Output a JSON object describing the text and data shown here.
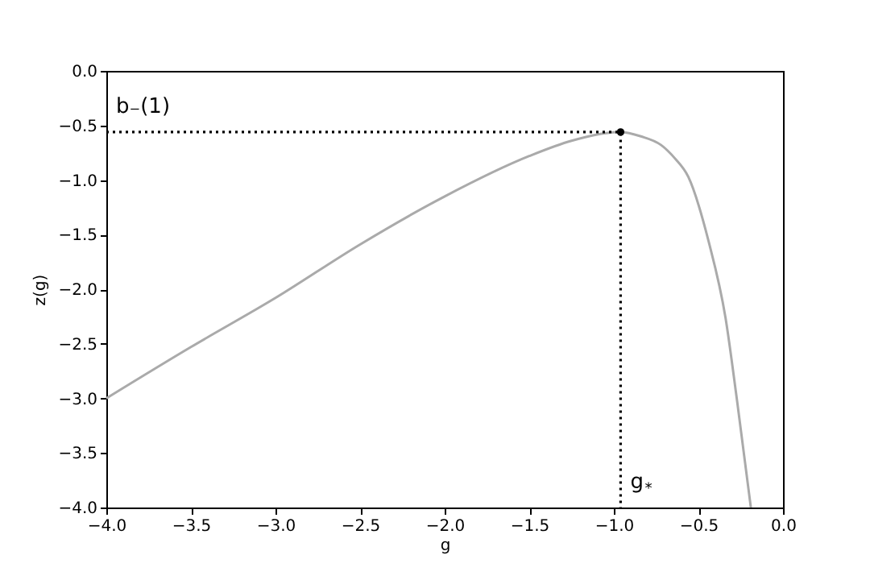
{
  "chart_data": {
    "type": "line",
    "xlabel": "g",
    "ylabel": "z(g)",
    "xlim": [
      -4,
      0
    ],
    "ylim": [
      -4,
      0
    ],
    "xticks": [
      {
        "value": -4,
        "label": "−4.0"
      },
      {
        "value": -3.5,
        "label": "−3.5"
      },
      {
        "value": -3,
        "label": "−3.0"
      },
      {
        "value": -2.5,
        "label": "−2.5"
      },
      {
        "value": -2,
        "label": "−2.0"
      },
      {
        "value": -1.5,
        "label": "−1.5"
      },
      {
        "value": -1,
        "label": "−1.0"
      },
      {
        "value": -0.5,
        "label": "−0.5"
      },
      {
        "value": 0,
        "label": "0.0"
      }
    ],
    "yticks": [
      {
        "value": 0,
        "label": "0.0"
      },
      {
        "value": -0.5,
        "label": "−0.5"
      },
      {
        "value": -1,
        "label": "−1.0"
      },
      {
        "value": -1.5,
        "label": "−1.5"
      },
      {
        "value": -2,
        "label": "−2.0"
      },
      {
        "value": -2.5,
        "label": "−2.5"
      },
      {
        "value": -3,
        "label": "−3.0"
      },
      {
        "value": -3.5,
        "label": "−3.5"
      },
      {
        "value": -4,
        "label": "−4.0"
      }
    ],
    "grid": false,
    "series": [
      {
        "type": "line",
        "color": "#aaaaaa",
        "line_style": "solid",
        "x": [
          -4,
          -3.5,
          -3,
          -2.5,
          -2,
          -1.5,
          -1.25,
          -0.96,
          -0.84,
          -0.72,
          -0.64,
          -0.56,
          -0.44,
          -0.34,
          -0.27,
          -0.19
        ],
        "values": [
          -3.0,
          -2.53,
          -2.08,
          -1.59,
          -1.15,
          -0.78,
          -0.64,
          -0.56,
          -0.6,
          -0.68,
          -0.8,
          -0.97,
          -1.56,
          -2.26,
          -3.04,
          -4.0
        ]
      },
      {
        "type": "line",
        "color": "#000000",
        "line_style": "dotted",
        "x": [
          -4,
          -0.96,
          -0.96
        ],
        "values": [
          -0.56,
          -0.56,
          -4
        ]
      },
      {
        "type": "scatter",
        "color": "#000000",
        "marker": "circle",
        "x": [
          -0.96
        ],
        "values": [
          -0.56
        ]
      }
    ],
    "annotations": [
      {
        "text": "b₋(1)",
        "x": -4,
        "y": -0.56
      },
      {
        "text": "g$_{*}$",
        "x": -0.96,
        "y": -4
      }
    ]
  }
}
